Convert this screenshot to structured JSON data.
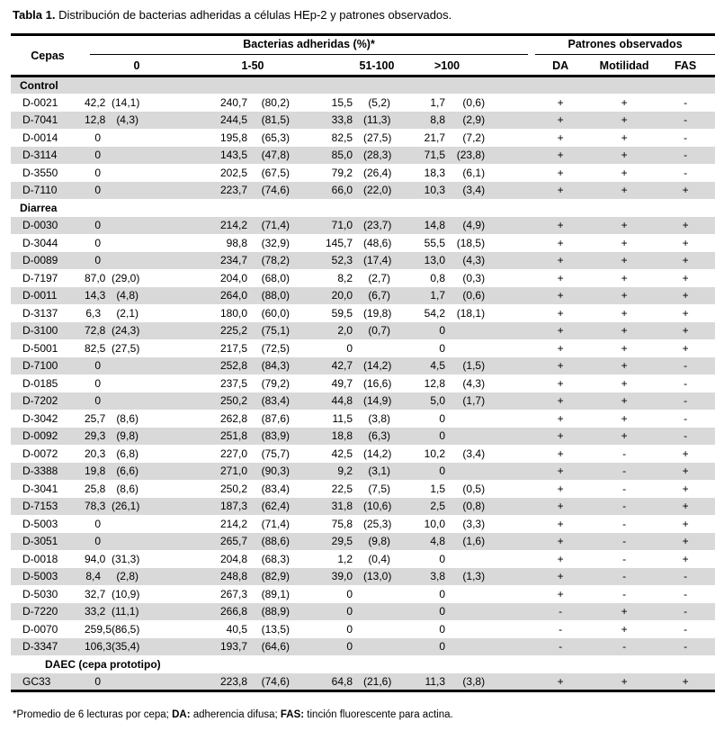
{
  "title": {
    "prefix": "Tabla 1.",
    "text": "Distribución de bacterias adheridas a células HEp-2 y patrones observados."
  },
  "table": {
    "col_cepas": "Cepas",
    "group_bacterias": "Bacterias adheridas (%)*",
    "group_patrones": "Patrones observados",
    "range_headers": [
      "0",
      "1-50",
      "51-100",
      ">100"
    ],
    "pattern_headers": [
      "DA",
      "Motilidad",
      "FAS"
    ],
    "sections": [
      {
        "name": "Control",
        "rows": [
          {
            "cepa": "D-0021",
            "values": [
              "42,2",
              "(14,1)",
              "240,7",
              "(80,2)",
              "15,5",
              "(5,2)",
              "1,7",
              "(0,6)"
            ],
            "patterns": [
              "+",
              "+",
              "-"
            ]
          },
          {
            "cepa": "D-7041",
            "values": [
              "12,8",
              "(4,3)",
              "244,5",
              "(81,5)",
              "33,8",
              "(11,3)",
              "8,8",
              "(2,9)"
            ],
            "patterns": [
              "+",
              "+",
              "-"
            ]
          },
          {
            "cepa": "D-0014",
            "values": [
              "0",
              "",
              "195,8",
              "(65,3)",
              "82,5",
              "(27,5)",
              "21,7",
              "(7,2)"
            ],
            "patterns": [
              "+",
              "+",
              "-"
            ]
          },
          {
            "cepa": "D-3114",
            "values": [
              "0",
              "",
              "143,5",
              "(47,8)",
              "85,0",
              "(28,3)",
              "71,5",
              "(23,8)"
            ],
            "patterns": [
              "+",
              "+",
              "-"
            ]
          },
          {
            "cepa": "D-3550",
            "values": [
              "0",
              "",
              "202,5",
              "(67,5)",
              "79,2",
              "(26,4)",
              "18,3",
              "(6,1)"
            ],
            "patterns": [
              "+",
              "+",
              "-"
            ]
          },
          {
            "cepa": "D-7110",
            "values": [
              "0",
              "",
              "223,7",
              "(74,6)",
              "66,0",
              "(22,0)",
              "10,3",
              "(3,4)"
            ],
            "patterns": [
              "+",
              "+",
              "+"
            ]
          }
        ]
      },
      {
        "name": "Diarrea",
        "rows": [
          {
            "cepa": "D-0030",
            "values": [
              "0",
              "",
              "214,2",
              "(71,4)",
              "71,0",
              "(23,7)",
              "14,8",
              "(4,9)"
            ],
            "patterns": [
              "+",
              "+",
              "+"
            ]
          },
          {
            "cepa": "D-3044",
            "values": [
              "0",
              "",
              "98,8",
              "(32,9)",
              "145,7",
              "(48,6)",
              "55,5",
              "(18,5)"
            ],
            "patterns": [
              "+",
              "+",
              "+"
            ]
          },
          {
            "cepa": "D-0089",
            "values": [
              "0",
              "",
              "234,7",
              "(78,2)",
              "52,3",
              "(17,4)",
              "13,0",
              "(4,3)"
            ],
            "patterns": [
              "+",
              "+",
              "+"
            ]
          },
          {
            "cepa": "D-7197",
            "values": [
              "87,0",
              "(29,0)",
              "204,0",
              "(68,0)",
              "8,2",
              "(2,7)",
              "0,8",
              "(0,3)"
            ],
            "patterns": [
              "+",
              "+",
              "+"
            ]
          },
          {
            "cepa": "D-0011",
            "values": [
              "14,3",
              "(4,8)",
              "264,0",
              "(88,0)",
              "20,0",
              "(6,7)",
              "1,7",
              "(0,6)"
            ],
            "patterns": [
              "+",
              "+",
              "+"
            ]
          },
          {
            "cepa": "D-3137",
            "values": [
              "6,3",
              "(2,1)",
              "180,0",
              "(60,0)",
              "59,5",
              "(19,8)",
              "54,2",
              "(18,1)"
            ],
            "patterns": [
              "+",
              "+",
              "+"
            ]
          },
          {
            "cepa": "D-3100",
            "values": [
              "72,8",
              "(24,3)",
              "225,2",
              "(75,1)",
              "2,0",
              "(0,7)",
              "0",
              ""
            ],
            "patterns": [
              "+",
              "+",
              "+"
            ]
          },
          {
            "cepa": "D-5001",
            "values": [
              "82,5",
              "(27,5)",
              "217,5",
              "(72,5)",
              "0",
              "",
              "0",
              ""
            ],
            "patterns": [
              "+",
              "+",
              "+"
            ]
          },
          {
            "cepa": "D-7100",
            "values": [
              "0",
              "",
              "252,8",
              "(84,3)",
              "42,7",
              "(14,2)",
              "4,5",
              "(1,5)"
            ],
            "patterns": [
              "+",
              "+",
              "-"
            ]
          },
          {
            "cepa": "D-0185",
            "values": [
              "0",
              "",
              "237,5",
              "(79,2)",
              "49,7",
              "(16,6)",
              "12,8",
              "(4,3)"
            ],
            "patterns": [
              "+",
              "+",
              "-"
            ]
          },
          {
            "cepa": "D-7202",
            "values": [
              "0",
              "",
              "250,2",
              "(83,4)",
              "44,8",
              "(14,9)",
              "5,0",
              "(1,7)"
            ],
            "patterns": [
              "+",
              "+",
              "-"
            ]
          },
          {
            "cepa": "D-3042",
            "values": [
              "25,7",
              "(8,6)",
              "262,8",
              "(87,6)",
              "11,5",
              "(3,8)",
              "0",
              ""
            ],
            "patterns": [
              "+",
              "+",
              "-"
            ]
          },
          {
            "cepa": "D-0092",
            "values": [
              "29,3",
              "(9,8)",
              "251,8",
              "(83,9)",
              "18,8",
              "(6,3)",
              "0",
              ""
            ],
            "patterns": [
              "+",
              "+",
              "-"
            ]
          },
          {
            "cepa": "D-0072",
            "values": [
              "20,3",
              "(6,8)",
              "227,0",
              "(75,7)",
              "42,5",
              "(14,2)",
              "10,2",
              "(3,4)"
            ],
            "patterns": [
              "+",
              "-",
              "+"
            ]
          },
          {
            "cepa": "D-3388",
            "values": [
              "19,8",
              "(6,6)",
              "271,0",
              "(90,3)",
              "9,2",
              "(3,1)",
              "0",
              ""
            ],
            "patterns": [
              "+",
              "-",
              "+"
            ]
          },
          {
            "cepa": "D-3041",
            "values": [
              "25,8",
              "(8,6)",
              "250,2",
              "(83,4)",
              "22,5",
              "(7,5)",
              "1,5",
              "(0,5)"
            ],
            "patterns": [
              "+",
              "-",
              "+"
            ]
          },
          {
            "cepa": "D-7153",
            "values": [
              "78,3",
              "(26,1)",
              "187,3",
              "(62,4)",
              "31,8",
              "(10,6)",
              "2,5",
              "(0,8)"
            ],
            "patterns": [
              "+",
              "-",
              "+"
            ]
          },
          {
            "cepa": "D-5003",
            "values": [
              "0",
              "",
              "214,2",
              "(71,4)",
              "75,8",
              "(25,3)",
              "10,0",
              "(3,3)"
            ],
            "patterns": [
              "+",
              "-",
              "+"
            ]
          },
          {
            "cepa": "D-3051",
            "values": [
              "0",
              "",
              "265,7",
              "(88,6)",
              "29,5",
              "(9,8)",
              "4,8",
              "(1,6)"
            ],
            "patterns": [
              "+",
              "-",
              "+"
            ]
          },
          {
            "cepa": "D-0018",
            "values": [
              "94,0",
              "(31,3)",
              "204,8",
              "(68,3)",
              "1,2",
              "(0,4)",
              "0",
              ""
            ],
            "patterns": [
              "+",
              "-",
              "+"
            ]
          },
          {
            "cepa": "D-5003",
            "values": [
              "8,4",
              "(2,8)",
              "248,8",
              "(82,9)",
              "39,0",
              "(13,0)",
              "3,8",
              "(1,3)"
            ],
            "patterns": [
              "+",
              "-",
              "-"
            ]
          },
          {
            "cepa": "D-5030",
            "values": [
              "32,7",
              "(10,9)",
              "267,3",
              "(89,1)",
              "0",
              "",
              "0",
              ""
            ],
            "patterns": [
              "+",
              "-",
              "-"
            ]
          },
          {
            "cepa": "D-7220",
            "values": [
              "33,2",
              "(11,1)",
              "266,8",
              "(88,9)",
              "0",
              "",
              "0",
              ""
            ],
            "patterns": [
              "-",
              "+",
              "-"
            ]
          },
          {
            "cepa": "D-0070",
            "values": [
              "259,5",
              "(86,5)",
              "40,5",
              "(13,5)",
              "0",
              "",
              "0",
              ""
            ],
            "patterns": [
              "-",
              "+",
              "-"
            ]
          },
          {
            "cepa": "D-3347",
            "values": [
              "106,3",
              "(35,4)",
              "193,7",
              "(64,6)",
              "0",
              "",
              "0",
              ""
            ],
            "patterns": [
              "-",
              "-",
              "-"
            ]
          }
        ]
      },
      {
        "name": "DAEC (cepa prototipo)",
        "rows": [
          {
            "cepa": "GC33",
            "values": [
              "0",
              "",
              "223,8",
              "(74,6)",
              "64,8",
              "(21,6)",
              "11,3",
              "(3,8)"
            ],
            "patterns": [
              "+",
              "+",
              "+"
            ]
          }
        ]
      }
    ]
  },
  "footnote": {
    "segments": [
      {
        "text": "*Promedio de 6 lecturas por cepa; ",
        "bold": false
      },
      {
        "text": "DA:",
        "bold": true
      },
      {
        "text": " adherencia difusa; ",
        "bold": false
      },
      {
        "text": "FAS:",
        "bold": true
      },
      {
        "text": " tinción fluorescente para actina.",
        "bold": false
      }
    ]
  },
  "colors": {
    "row_shade": "#d9d9d9",
    "rule": "#000000",
    "text": "#000000"
  }
}
